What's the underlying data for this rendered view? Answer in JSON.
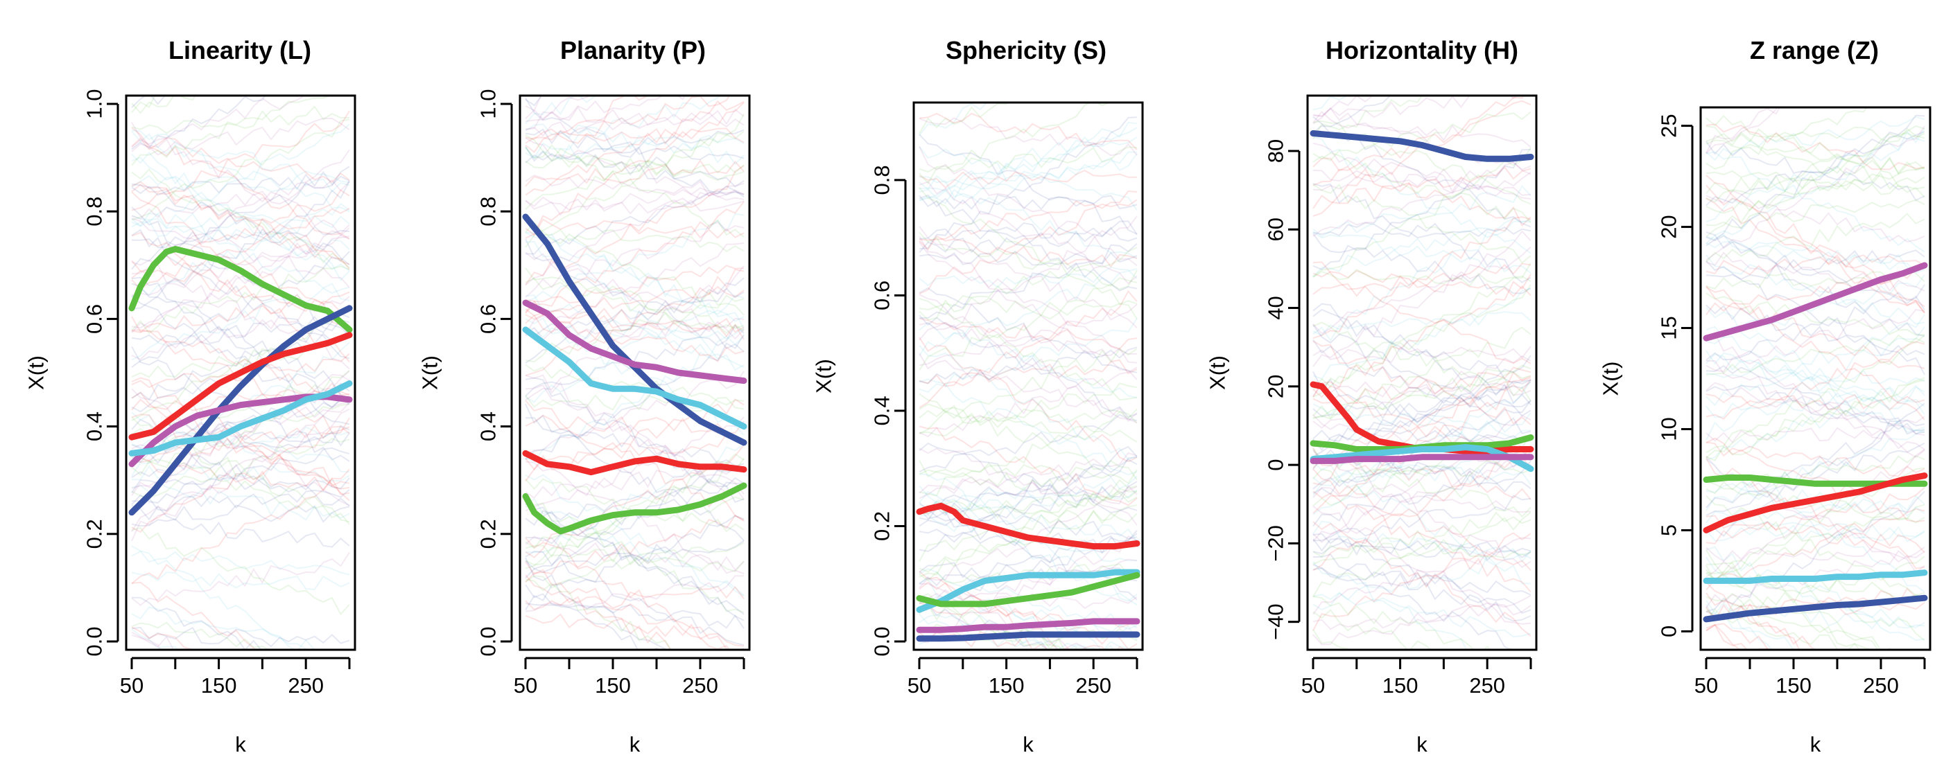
{
  "chart_data": [
    {
      "type": "line",
      "title": "Linearity (L)",
      "xlabel": "k",
      "ylabel": "X(t)",
      "xlim": [
        50,
        300
      ],
      "ylim": [
        0,
        1
      ],
      "xticks": [
        50,
        150,
        250
      ],
      "yticks": [
        0.0,
        0.2,
        0.4,
        0.6,
        0.8,
        1.0
      ],
      "ytick_labels": [
        "0.0",
        "0.2",
        "0.4",
        "0.6",
        "0.8",
        "1.0"
      ],
      "series": [
        {
          "name": "green",
          "color": "#5cbf3f",
          "x": [
            50,
            60,
            75,
            90,
            100,
            125,
            150,
            175,
            200,
            225,
            250,
            275,
            300
          ],
          "values": [
            0.62,
            0.66,
            0.7,
            0.725,
            0.73,
            0.72,
            0.71,
            0.69,
            0.665,
            0.645,
            0.625,
            0.615,
            0.58
          ]
        },
        {
          "name": "blue",
          "color": "#3a55a4",
          "x": [
            50,
            75,
            100,
            125,
            150,
            175,
            200,
            225,
            250,
            275,
            300
          ],
          "values": [
            0.24,
            0.28,
            0.33,
            0.38,
            0.43,
            0.475,
            0.515,
            0.55,
            0.58,
            0.6,
            0.62
          ]
        },
        {
          "name": "red",
          "color": "#ee2a2a",
          "x": [
            50,
            75,
            100,
            125,
            150,
            175,
            200,
            225,
            250,
            275,
            300
          ],
          "values": [
            0.38,
            0.39,
            0.42,
            0.45,
            0.48,
            0.5,
            0.52,
            0.535,
            0.545,
            0.555,
            0.57
          ]
        },
        {
          "name": "magenta",
          "color": "#b55aad",
          "x": [
            50,
            75,
            100,
            125,
            150,
            175,
            200,
            225,
            250,
            275,
            300
          ],
          "values": [
            0.33,
            0.37,
            0.4,
            0.42,
            0.43,
            0.44,
            0.445,
            0.45,
            0.455,
            0.455,
            0.45
          ]
        },
        {
          "name": "cyan",
          "color": "#5ec7e0",
          "x": [
            50,
            75,
            100,
            125,
            150,
            175,
            200,
            225,
            250,
            275,
            300
          ],
          "values": [
            0.35,
            0.355,
            0.37,
            0.375,
            0.38,
            0.4,
            0.415,
            0.43,
            0.45,
            0.46,
            0.48
          ]
        }
      ]
    },
    {
      "type": "line",
      "title": "Planarity (P)",
      "xlabel": "k",
      "ylabel": "X(t)",
      "xlim": [
        50,
        300
      ],
      "ylim": [
        0,
        1
      ],
      "xticks": [
        50,
        150,
        250
      ],
      "yticks": [
        0.0,
        0.2,
        0.4,
        0.6,
        0.8,
        1.0
      ],
      "ytick_labels": [
        "0.0",
        "0.2",
        "0.4",
        "0.6",
        "0.8",
        "1.0"
      ],
      "series": [
        {
          "name": "blue",
          "color": "#3a55a4",
          "x": [
            50,
            75,
            100,
            125,
            150,
            175,
            200,
            225,
            250,
            275,
            300
          ],
          "values": [
            0.79,
            0.74,
            0.67,
            0.61,
            0.55,
            0.51,
            0.47,
            0.44,
            0.41,
            0.39,
            0.37
          ]
        },
        {
          "name": "magenta",
          "color": "#b55aad",
          "x": [
            50,
            75,
            100,
            125,
            150,
            175,
            200,
            225,
            250,
            275,
            300
          ],
          "values": [
            0.63,
            0.61,
            0.57,
            0.545,
            0.53,
            0.515,
            0.51,
            0.5,
            0.495,
            0.49,
            0.485
          ]
        },
        {
          "name": "cyan",
          "color": "#5ec7e0",
          "x": [
            50,
            75,
            100,
            125,
            150,
            175,
            200,
            225,
            250,
            275,
            300
          ],
          "values": [
            0.58,
            0.55,
            0.52,
            0.48,
            0.47,
            0.47,
            0.465,
            0.45,
            0.44,
            0.42,
            0.4
          ]
        },
        {
          "name": "red",
          "color": "#ee2a2a",
          "x": [
            50,
            75,
            100,
            125,
            150,
            175,
            200,
            225,
            250,
            275,
            300
          ],
          "values": [
            0.35,
            0.33,
            0.325,
            0.315,
            0.325,
            0.335,
            0.34,
            0.33,
            0.325,
            0.325,
            0.32
          ]
        },
        {
          "name": "green",
          "color": "#5cbf3f",
          "x": [
            50,
            60,
            75,
            90,
            100,
            125,
            150,
            175,
            200,
            225,
            250,
            275,
            300
          ],
          "values": [
            0.27,
            0.24,
            0.22,
            0.205,
            0.21,
            0.225,
            0.235,
            0.24,
            0.24,
            0.245,
            0.255,
            0.27,
            0.29
          ]
        }
      ]
    },
    {
      "type": "line",
      "title": "Sphericity (S)",
      "xlabel": "k",
      "ylabel": "X(t)",
      "xlim": [
        50,
        300
      ],
      "ylim": [
        0,
        0.92
      ],
      "xticks": [
        50,
        150,
        250
      ],
      "yticks": [
        0.0,
        0.2,
        0.4,
        0.6,
        0.8
      ],
      "ytick_labels": [
        "0.0",
        "0.2",
        "0.4",
        "0.6",
        "0.8"
      ],
      "series": [
        {
          "name": "red",
          "color": "#ee2a2a",
          "x": [
            50,
            60,
            75,
            90,
            100,
            125,
            150,
            175,
            200,
            225,
            250,
            275,
            300
          ],
          "values": [
            0.225,
            0.23,
            0.235,
            0.225,
            0.21,
            0.2,
            0.19,
            0.18,
            0.175,
            0.17,
            0.165,
            0.165,
            0.17
          ]
        },
        {
          "name": "cyan",
          "color": "#5ec7e0",
          "x": [
            50,
            75,
            100,
            125,
            150,
            175,
            200,
            225,
            250,
            275,
            300
          ],
          "values": [
            0.055,
            0.07,
            0.09,
            0.105,
            0.11,
            0.115,
            0.115,
            0.115,
            0.115,
            0.12,
            0.12
          ]
        },
        {
          "name": "green",
          "color": "#5cbf3f",
          "x": [
            50,
            75,
            100,
            125,
            150,
            175,
            200,
            225,
            250,
            275,
            300
          ],
          "values": [
            0.075,
            0.065,
            0.065,
            0.065,
            0.07,
            0.075,
            0.08,
            0.085,
            0.095,
            0.105,
            0.115
          ]
        },
        {
          "name": "magenta",
          "color": "#b55aad",
          "x": [
            50,
            75,
            100,
            125,
            150,
            175,
            200,
            225,
            250,
            275,
            300
          ],
          "values": [
            0.02,
            0.02,
            0.022,
            0.025,
            0.025,
            0.028,
            0.03,
            0.032,
            0.035,
            0.035,
            0.035
          ]
        },
        {
          "name": "blue",
          "color": "#3a55a4",
          "x": [
            50,
            75,
            100,
            125,
            150,
            175,
            200,
            225,
            250,
            275,
            300
          ],
          "values": [
            0.005,
            0.005,
            0.006,
            0.008,
            0.01,
            0.012,
            0.012,
            0.012,
            0.012,
            0.012,
            0.012
          ]
        }
      ]
    },
    {
      "type": "line",
      "title": "Horizontality (H)",
      "xlabel": "k",
      "ylabel": "X(t)",
      "xlim": [
        50,
        300
      ],
      "ylim": [
        -45,
        92
      ],
      "xticks": [
        50,
        150,
        250
      ],
      "yticks": [
        -40,
        -20,
        0,
        20,
        40,
        60,
        80
      ],
      "ytick_labels": [
        "−40",
        "−20",
        "0",
        "20",
        "40",
        "60",
        "80"
      ],
      "series": [
        {
          "name": "blue",
          "color": "#3a55a4",
          "x": [
            50,
            75,
            100,
            125,
            150,
            175,
            200,
            225,
            250,
            275,
            300
          ],
          "values": [
            84.5,
            84,
            83.5,
            83,
            82.5,
            81.5,
            80,
            78.5,
            78,
            78,
            78.5
          ]
        },
        {
          "name": "red",
          "color": "#ee2a2a",
          "x": [
            50,
            60,
            75,
            90,
            100,
            125,
            150,
            175,
            200,
            225,
            250,
            275,
            300
          ],
          "values": [
            20.5,
            20,
            16,
            12,
            9,
            6,
            5,
            4,
            4,
            3.5,
            3.5,
            4,
            4
          ]
        },
        {
          "name": "green",
          "color": "#5cbf3f",
          "x": [
            50,
            75,
            100,
            125,
            150,
            175,
            200,
            225,
            250,
            275,
            300
          ],
          "values": [
            5.5,
            5,
            4,
            4,
            4,
            4.5,
            5,
            5,
            5,
            5.5,
            7
          ]
        },
        {
          "name": "cyan",
          "color": "#5ec7e0",
          "x": [
            50,
            75,
            100,
            125,
            150,
            175,
            200,
            225,
            250,
            275,
            300
          ],
          "values": [
            1.5,
            2,
            2.5,
            3,
            3.5,
            4,
            4,
            4.5,
            4,
            2,
            -1
          ]
        },
        {
          "name": "magenta",
          "color": "#b55aad",
          "x": [
            50,
            75,
            100,
            125,
            150,
            175,
            200,
            225,
            250,
            275,
            300
          ],
          "values": [
            1,
            1,
            1.5,
            1.5,
            1.5,
            2,
            2,
            2,
            2,
            2,
            2
          ]
        }
      ]
    },
    {
      "type": "line",
      "title": "Z range (Z)",
      "xlabel": "k",
      "ylabel": "X(t)",
      "xlim": [
        50,
        300
      ],
      "ylim": [
        -0.5,
        25.5
      ],
      "xticks": [
        50,
        150,
        250
      ],
      "yticks": [
        0,
        5,
        10,
        15,
        20,
        25
      ],
      "ytick_labels": [
        "0",
        "5",
        "10",
        "15",
        "20",
        "25"
      ],
      "series": [
        {
          "name": "magenta",
          "color": "#b55aad",
          "x": [
            50,
            75,
            100,
            125,
            150,
            175,
            200,
            225,
            250,
            275,
            300
          ],
          "values": [
            14.5,
            14.8,
            15.1,
            15.4,
            15.8,
            16.2,
            16.6,
            17.0,
            17.4,
            17.7,
            18.1
          ]
        },
        {
          "name": "green",
          "color": "#5cbf3f",
          "x": [
            50,
            75,
            100,
            125,
            150,
            175,
            200,
            225,
            250,
            275,
            300
          ],
          "values": [
            7.5,
            7.6,
            7.6,
            7.5,
            7.4,
            7.3,
            7.3,
            7.3,
            7.3,
            7.3,
            7.3
          ]
        },
        {
          "name": "red",
          "color": "#ee2a2a",
          "x": [
            50,
            75,
            100,
            125,
            150,
            175,
            200,
            225,
            250,
            275,
            300
          ],
          "values": [
            5.0,
            5.5,
            5.8,
            6.1,
            6.3,
            6.5,
            6.7,
            6.9,
            7.2,
            7.5,
            7.7
          ]
        },
        {
          "name": "cyan",
          "color": "#5ec7e0",
          "x": [
            50,
            75,
            100,
            125,
            150,
            175,
            200,
            225,
            250,
            275,
            300
          ],
          "values": [
            2.5,
            2.5,
            2.5,
            2.6,
            2.6,
            2.6,
            2.7,
            2.7,
            2.8,
            2.8,
            2.9
          ]
        },
        {
          "name": "blue",
          "color": "#3a55a4",
          "x": [
            50,
            75,
            100,
            125,
            150,
            175,
            200,
            225,
            250,
            275,
            300
          ],
          "values": [
            0.6,
            0.75,
            0.9,
            1.0,
            1.1,
            1.2,
            1.3,
            1.35,
            1.45,
            1.55,
            1.65
          ]
        }
      ]
    }
  ]
}
